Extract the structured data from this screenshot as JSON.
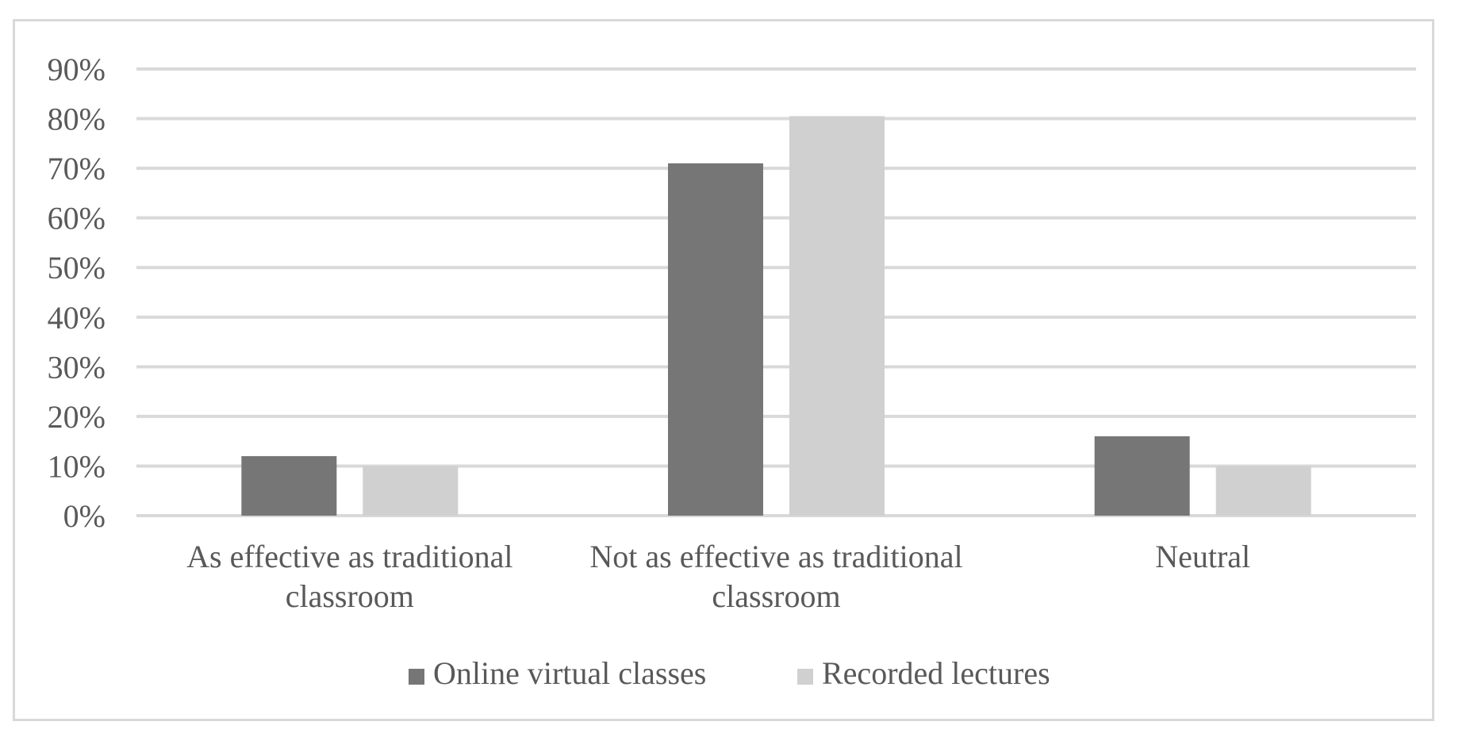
{
  "chart_data": {
    "type": "bar",
    "categories": [
      [
        "As effective as traditional",
        "classroom"
      ],
      [
        "Not as effective as traditional",
        "classroom"
      ],
      [
        "Neutral"
      ]
    ],
    "series": [
      {
        "name": "Online virtual classes",
        "color": "#767676",
        "values": [
          12,
          71,
          16
        ]
      },
      {
        "name": "Recorded lectures",
        "color": "#d0d0d0",
        "values": [
          10,
          80.5,
          10
        ]
      }
    ],
    "ylim": [
      0,
      90
    ],
    "yticks": [
      0,
      10,
      20,
      30,
      40,
      50,
      60,
      70,
      80,
      90
    ],
    "ytick_labels": [
      "0%",
      "10%",
      "20%",
      "30%",
      "40%",
      "50%",
      "60%",
      "70%",
      "80%",
      "90%"
    ],
    "grid": true,
    "grid_color": "#d9d9d9",
    "legend_position": "bottom",
    "title": "",
    "xlabel": "",
    "ylabel": ""
  }
}
